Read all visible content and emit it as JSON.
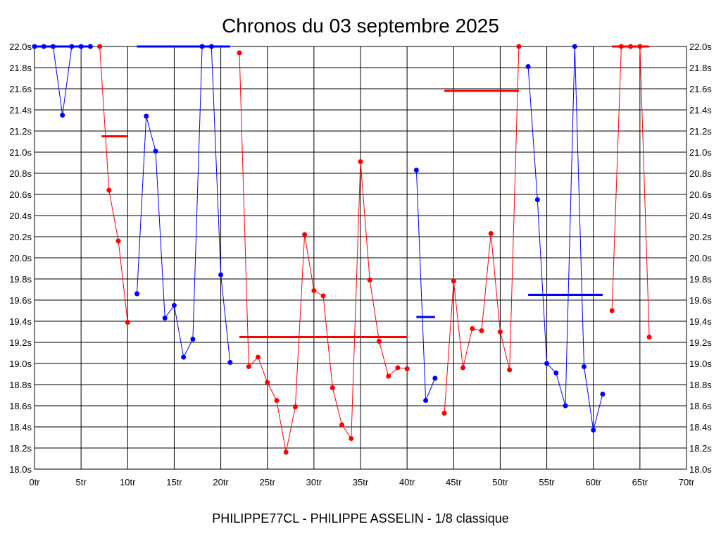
{
  "chart_data": {
    "type": "line",
    "title": "Chronos du 03 septembre 2025",
    "footer": "PHILIPPE77CL - PHILIPPE ASSELIN - 1/8 classique",
    "xlim": [
      0,
      70
    ],
    "ylim": [
      18.0,
      22.0
    ],
    "grid": true,
    "colors": {
      "blue": "#0000ff",
      "red": "#ff0000",
      "grid": "#000000"
    },
    "x_ticks": [
      {
        "value": 0,
        "label": "0tr"
      },
      {
        "value": 5,
        "label": "5tr"
      },
      {
        "value": 10,
        "label": "10tr"
      },
      {
        "value": 15,
        "label": "15tr"
      },
      {
        "value": 20,
        "label": "20tr"
      },
      {
        "value": 25,
        "label": "25tr"
      },
      {
        "value": 30,
        "label": "30tr"
      },
      {
        "value": 35,
        "label": "35tr"
      },
      {
        "value": 40,
        "label": "40tr"
      },
      {
        "value": 45,
        "label": "45tr"
      },
      {
        "value": 50,
        "label": "50tr"
      },
      {
        "value": 55,
        "label": "55tr"
      },
      {
        "value": 60,
        "label": "60tr"
      },
      {
        "value": 65,
        "label": "65tr"
      },
      {
        "value": 70,
        "label": "70tr"
      }
    ],
    "y_ticks": [
      {
        "value": 18.0,
        "label": "18.0s"
      },
      {
        "value": 18.2,
        "label": "18.2s"
      },
      {
        "value": 18.4,
        "label": "18.4s"
      },
      {
        "value": 18.6,
        "label": "18.6s"
      },
      {
        "value": 18.8,
        "label": "18.8s"
      },
      {
        "value": 19.0,
        "label": "19.0s"
      },
      {
        "value": 19.2,
        "label": "19.2s"
      },
      {
        "value": 19.4,
        "label": "19.4s"
      },
      {
        "value": 19.6,
        "label": "19.6s"
      },
      {
        "value": 19.8,
        "label": "19.8s"
      },
      {
        "value": 20.0,
        "label": "20.0s"
      },
      {
        "value": 20.2,
        "label": "20.2s"
      },
      {
        "value": 20.4,
        "label": "20.4s"
      },
      {
        "value": 20.6,
        "label": "20.6s"
      },
      {
        "value": 20.8,
        "label": "20.8s"
      },
      {
        "value": 21.0,
        "label": "21.0s"
      },
      {
        "value": 21.2,
        "label": "21.2s"
      },
      {
        "value": 21.4,
        "label": "21.4s"
      },
      {
        "value": 21.6,
        "label": "21.6s"
      },
      {
        "value": 21.8,
        "label": "21.8s"
      },
      {
        "value": 22.0,
        "label": "22.0s"
      }
    ],
    "segments": [
      {
        "color": "blue",
        "points": [
          [
            0,
            22.0
          ],
          [
            1,
            22.0
          ],
          [
            2,
            22.0
          ],
          [
            3,
            21.35
          ],
          [
            4,
            22.0
          ],
          [
            5,
            22.0
          ],
          [
            6,
            22.0
          ]
        ],
        "average": {
          "value": 22.0,
          "x_start": 0,
          "x_end": 6
        }
      },
      {
        "color": "red",
        "points": [
          [
            7,
            22.0
          ],
          [
            8,
            20.64
          ],
          [
            9,
            20.16
          ],
          [
            10,
            19.39
          ]
        ],
        "average": {
          "value": 21.15,
          "x_start": 7.2,
          "x_end": 10
        }
      },
      {
        "color": "blue",
        "points": [
          [
            11,
            19.66
          ],
          [
            12,
            21.34
          ],
          [
            13,
            21.01
          ],
          [
            14,
            19.43
          ],
          [
            15,
            19.55
          ],
          [
            16,
            19.06
          ],
          [
            17,
            19.23
          ],
          [
            18,
            22.0
          ],
          [
            19,
            22.0
          ],
          [
            20,
            19.84
          ],
          [
            21,
            19.01
          ]
        ],
        "average": {
          "value": 22.0,
          "x_start": 11,
          "x_end": 21
        }
      },
      {
        "color": "red",
        "points": [
          [
            22,
            21.94
          ],
          [
            23,
            18.97
          ],
          [
            24,
            19.06
          ],
          [
            25,
            18.82
          ],
          [
            26,
            18.65
          ],
          [
            27,
            18.16
          ],
          [
            28,
            18.59
          ],
          [
            29,
            20.22
          ],
          [
            30,
            19.69
          ],
          [
            31,
            19.64
          ],
          [
            32,
            18.77
          ],
          [
            33,
            18.42
          ],
          [
            34,
            18.29
          ],
          [
            35,
            20.91
          ],
          [
            36,
            19.79
          ],
          [
            37,
            19.21
          ],
          [
            38,
            18.88
          ],
          [
            39,
            18.96
          ],
          [
            40,
            18.95
          ]
        ],
        "average": {
          "value": 19.25,
          "x_start": 22,
          "x_end": 40
        }
      },
      {
        "color": "blue",
        "points": [
          [
            41,
            20.83
          ],
          [
            42,
            18.65
          ],
          [
            43,
            18.86
          ]
        ],
        "average": {
          "value": 19.44,
          "x_start": 41,
          "x_end": 43
        }
      },
      {
        "color": "red",
        "points": [
          [
            44,
            18.53
          ],
          [
            45,
            19.78
          ],
          [
            46,
            18.96
          ],
          [
            47,
            19.33
          ],
          [
            48,
            19.31
          ],
          [
            49,
            20.23
          ],
          [
            50,
            19.3
          ],
          [
            51,
            18.94
          ],
          [
            52,
            22.0
          ]
        ],
        "average": {
          "value": 21.58,
          "x_start": 44,
          "x_end": 52
        }
      },
      {
        "color": "blue",
        "points": [
          [
            53,
            21.81
          ],
          [
            54,
            20.55
          ],
          [
            55,
            19.0
          ],
          [
            56,
            18.91
          ],
          [
            57,
            18.6
          ],
          [
            58,
            22.0
          ],
          [
            59,
            18.97
          ],
          [
            60,
            18.37
          ],
          [
            61,
            18.71
          ]
        ],
        "average": {
          "value": 19.65,
          "x_start": 53,
          "x_end": 61
        }
      },
      {
        "color": "red",
        "points": [
          [
            62,
            19.5
          ],
          [
            63,
            22.0
          ],
          [
            64,
            22.0
          ],
          [
            65,
            22.0
          ],
          [
            66,
            19.25
          ]
        ],
        "average": {
          "value": 22.0,
          "x_start": 62,
          "x_end": 66
        }
      }
    ]
  }
}
